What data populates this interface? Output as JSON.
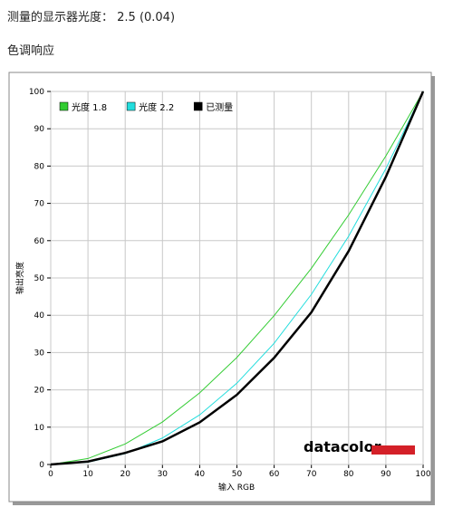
{
  "header": {
    "measurement": "测量的显示器光度： 2.5 (0.04)",
    "section": "色调响应"
  },
  "chart_data": {
    "type": "line",
    "x_label": "输入 RGB",
    "y_label": "输出亮度",
    "logo": "datacolor",
    "x": [
      0,
      10,
      20,
      30,
      40,
      50,
      60,
      70,
      80,
      90,
      100
    ],
    "series": [
      {
        "name": "光度 1.8",
        "color": "#33cc33",
        "width": 1,
        "values": [
          0,
          1.6,
          5.5,
          11.4,
          19.2,
          28.7,
          39.9,
          52.6,
          66.9,
          82.7,
          100
        ]
      },
      {
        "name": "光度 2.2",
        "color": "#22dddd",
        "width": 1,
        "values": [
          0,
          0.6,
          2.9,
          7.1,
          13.3,
          21.8,
          32.5,
          45.6,
          61.2,
          79.3,
          100
        ]
      },
      {
        "name": "已测量",
        "color": "#000000",
        "width": 2.5,
        "values": [
          0,
          0.8,
          3.1,
          6.2,
          11.3,
          18.7,
          28.6,
          40.8,
          57.2,
          77.1,
          100
        ]
      }
    ],
    "xlim": [
      0,
      100
    ],
    "ylim": [
      0,
      100
    ],
    "xticks": [
      0,
      10,
      20,
      30,
      40,
      50,
      60,
      70,
      80,
      90,
      100
    ],
    "yticks": [
      0,
      10,
      20,
      30,
      40,
      50,
      60,
      70,
      80,
      90,
      100
    ],
    "grid": true,
    "legend": "top-left"
  }
}
